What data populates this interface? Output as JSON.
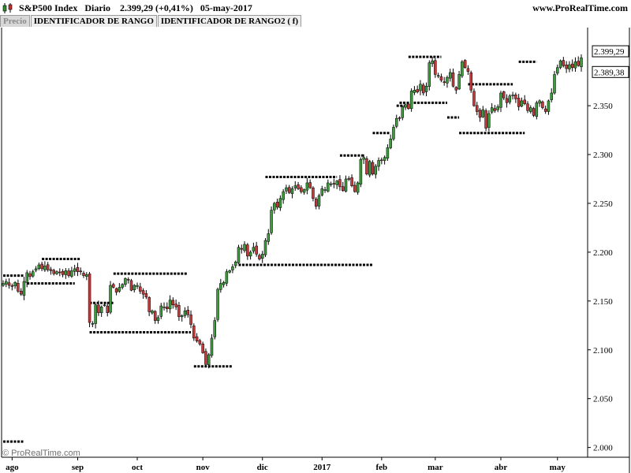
{
  "header": {
    "title": "S&P500 Index",
    "timeframe": "Diario",
    "last": "2.399,29",
    "change": "(+0,41%)",
    "date": "05-may-2017",
    "site": "www.ProRealTime.com",
    "icon": "candlestick-icon"
  },
  "tabs": [
    {
      "label": "Precio"
    },
    {
      "label": "IDENTIFICADOR DE RANGO"
    },
    {
      "label": "IDENTIFICADOR DE RANGO2 ( f)"
    }
  ],
  "watermark": "© ProRealTime.com",
  "chart_data": {
    "type": "candlestick",
    "title": "S&P500 Index",
    "ylim": [
      1990,
      2430
    ],
    "ylabel": "",
    "xlabel": "",
    "y_ticks": [
      2000,
      2050,
      2100,
      2150,
      2200,
      2250,
      2300,
      2350
    ],
    "y_tick_labels": [
      "2.000",
      "2.050",
      "2.100",
      "2.150",
      "2.200",
      "2.250",
      "2.300",
      "2.350"
    ],
    "price_labels": [
      {
        "label": "2.399,29",
        "value": 2399.29
      },
      {
        "label": "2.389,38",
        "value": 2389.38
      }
    ],
    "month_labels": [
      {
        "label": "ago",
        "index": 3
      },
      {
        "label": "sep",
        "index": 25
      },
      {
        "label": "oct",
        "index": 45
      },
      {
        "label": "nov",
        "index": 67
      },
      {
        "label": "dic",
        "index": 87
      },
      {
        "label": "2017",
        "index": 107
      },
      {
        "label": "feb",
        "index": 127
      },
      {
        "label": "mar",
        "index": 145
      },
      {
        "label": "abr",
        "index": 167
      },
      {
        "label": "may",
        "index": 186
      }
    ],
    "candles_close": [
      2168,
      2170,
      2166,
      2165,
      2169,
      2160,
      2157,
      2170,
      2179,
      2175,
      2180,
      2183,
      2187,
      2183,
      2186,
      2182,
      2181,
      2178,
      2180,
      2179,
      2177,
      2181,
      2176,
      2181,
      2183,
      2180,
      2180,
      2176,
      2177,
      2128,
      2127,
      2146,
      2138,
      2144,
      2146,
      2138,
      2166,
      2164,
      2159,
      2164,
      2167,
      2173,
      2172,
      2161,
      2166,
      2166,
      2160,
      2157,
      2154,
      2139,
      2140,
      2130,
      2133,
      2145,
      2144,
      2142,
      2151,
      2146,
      2144,
      2134,
      2135,
      2140,
      2136,
      2126,
      2112,
      2109,
      2106,
      2097,
      2085,
      2095,
      2112,
      2130,
      2162,
      2168,
      2169,
      2180,
      2181,
      2185,
      2190,
      2205,
      2203,
      2208,
      2196,
      2200,
      2205,
      2198,
      2193,
      2198,
      2212,
      2219,
      2243,
      2250,
      2246,
      2255,
      2262,
      2266,
      2261,
      2265,
      2268,
      2265,
      2262,
      2264,
      2271,
      2266,
      2255,
      2247,
      2258,
      2265,
      2264,
      2271,
      2270,
      2270,
      2273,
      2267,
      2263,
      2275,
      2275,
      2268,
      2262,
      2271,
      2295,
      2297,
      2280,
      2293,
      2280,
      2288,
      2294,
      2294,
      2297,
      2307,
      2316,
      2328,
      2337,
      2337,
      2349,
      2351,
      2347,
      2365,
      2366,
      2364,
      2372,
      2363,
      2370,
      2394,
      2396,
      2382,
      2381,
      2376,
      2374,
      2379,
      2384,
      2370,
      2366,
      2382,
      2395,
      2389,
      2385,
      2366,
      2350,
      2344,
      2338,
      2346,
      2327,
      2342,
      2348,
      2345,
      2349,
      2363,
      2358,
      2353,
      2360,
      2361,
      2357,
      2349,
      2355,
      2352,
      2345,
      2348,
      2340,
      2353,
      2355,
      2348,
      2344,
      2355,
      2363,
      2382,
      2389,
      2396,
      2391,
      2388,
      2392,
      2389,
      2395,
      2391,
      2399
    ],
    "range_lines": [
      {
        "y": 2176,
        "x0": 0,
        "x1": 7
      },
      {
        "y": 2168,
        "x0": 8,
        "x1": 24
      },
      {
        "y": 2193,
        "x0": 13,
        "x1": 26
      },
      {
        "y": 2118,
        "x0": 29,
        "x1": 63
      },
      {
        "y": 2148,
        "x0": 29,
        "x1": 37
      },
      {
        "y": 2178,
        "x0": 37,
        "x1": 62
      },
      {
        "y": 2083,
        "x0": 64,
        "x1": 77
      },
      {
        "y": 2187,
        "x0": 79,
        "x1": 124
      },
      {
        "y": 2277,
        "x0": 88,
        "x1": 112
      },
      {
        "y": 2299,
        "x0": 113,
        "x1": 121
      },
      {
        "y": 2322,
        "x0": 124,
        "x1": 130
      },
      {
        "y": 2350,
        "x0": 132,
        "x1": 136
      },
      {
        "y": 2400,
        "x0": 136,
        "x1": 147
      },
      {
        "y": 2353,
        "x0": 133,
        "x1": 149
      },
      {
        "y": 2338,
        "x0": 149,
        "x1": 153
      },
      {
        "y": 2322,
        "x0": 153,
        "x1": 175
      },
      {
        "y": 2372,
        "x0": 156,
        "x1": 171
      },
      {
        "y": 2395,
        "x0": 173,
        "x1": 179
      },
      {
        "y": 2006,
        "x0": 0,
        "x1": 7
      }
    ]
  }
}
